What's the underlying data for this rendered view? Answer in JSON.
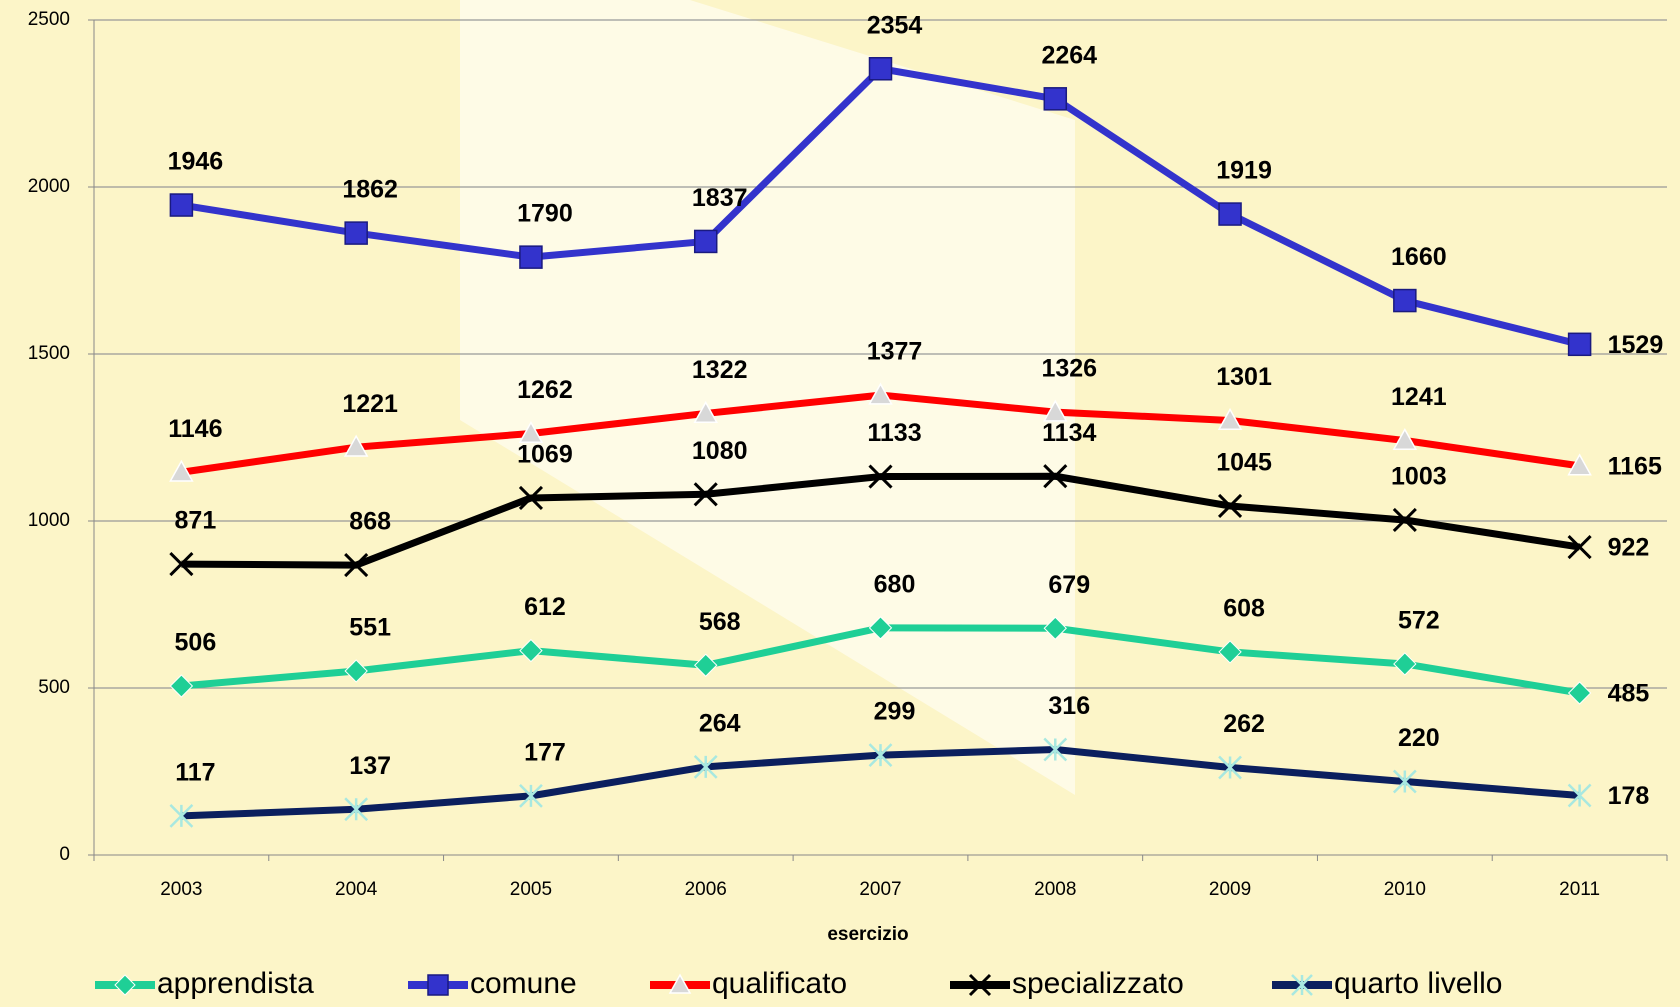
{
  "chart_data": {
    "type": "line",
    "x_label": "esercizio",
    "categories": [
      "2003",
      "2004",
      "2005",
      "2006",
      "2007",
      "2008",
      "2009",
      "2010",
      "2011"
    ],
    "ylim": [
      0,
      2500
    ],
    "yticks": [
      0,
      500,
      1000,
      1500,
      2000,
      2500
    ],
    "grid": true,
    "legend": "bottom",
    "series": [
      {
        "name": "apprendista",
        "color": "#1fcf96",
        "marker": "diamond",
        "values": [
          506,
          551,
          612,
          568,
          680,
          679,
          608,
          572,
          485
        ]
      },
      {
        "name": "comune",
        "color": "#3333cc",
        "marker": "square",
        "values": [
          1946,
          1862,
          1790,
          1837,
          2354,
          2264,
          1919,
          1660,
          1529
        ]
      },
      {
        "name": "qualificato",
        "color": "#ff0000",
        "marker": "triangle",
        "values": [
          1146,
          1221,
          1262,
          1322,
          1377,
          1326,
          1301,
          1241,
          1165
        ]
      },
      {
        "name": "specializzato",
        "color": "#000000",
        "marker": "x",
        "values": [
          871,
          868,
          1069,
          1080,
          1133,
          1134,
          1045,
          1003,
          922
        ]
      },
      {
        "name": "quarto livello",
        "color": "#0b1f5e",
        "marker": "star",
        "values": [
          117,
          137,
          177,
          264,
          299,
          316,
          262,
          220,
          178
        ]
      }
    ]
  }
}
